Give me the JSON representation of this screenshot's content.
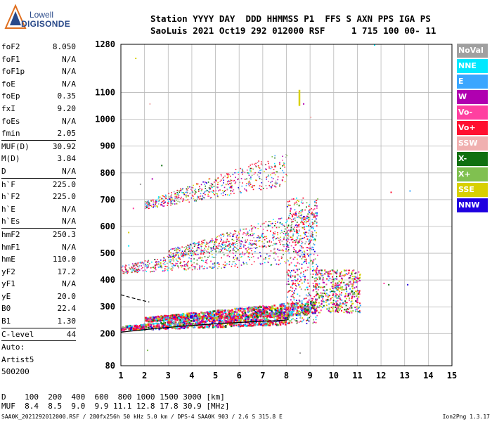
{
  "logo": {
    "line1": "Lowell",
    "line2": "DIGISONDE"
  },
  "header": {
    "line1": "Station YYYY DAY  DDD HHMMSS P1  FFS S AXN PPS IGA PS",
    "line2": "SaoLuis 2021 Oct19 292 012000 RSF     1 715 100 00- 11"
  },
  "params": {
    "group1": [
      {
        "label": "foF2",
        "value": "8.050"
      },
      {
        "label": "foF1",
        "value": "N/A"
      },
      {
        "label": "foF1p",
        "value": "N/A"
      },
      {
        "label": "foE",
        "value": "N/A"
      },
      {
        "label": "foEp",
        "value": "0.35"
      },
      {
        "label": "fxI",
        "value": "9.20"
      },
      {
        "label": "foEs",
        "value": "N/A"
      },
      {
        "label": "fmin",
        "value": "2.05"
      }
    ],
    "group2": [
      {
        "label": "MUF(D)",
        "value": "30.92"
      },
      {
        "label": "M(D)",
        "value": "3.84"
      },
      {
        "label": "D",
        "value": "N/A"
      }
    ],
    "group3": [
      {
        "label": "h`F",
        "value": "225.0"
      },
      {
        "label": "h`F2",
        "value": "225.0"
      },
      {
        "label": "h`E",
        "value": "N/A"
      },
      {
        "label": "h`Es",
        "value": "N/A"
      }
    ],
    "group4": [
      {
        "label": "hmF2",
        "value": "250.3"
      },
      {
        "label": "hmF1",
        "value": "N/A"
      },
      {
        "label": "hmE",
        "value": "110.0"
      },
      {
        "label": "yF2",
        "value": "17.2"
      },
      {
        "label": "yF1",
        "value": "N/A"
      },
      {
        "label": "yE",
        "value": "20.0"
      },
      {
        "label": "B0",
        "value": "22.4"
      },
      {
        "label": "B1",
        "value": "1.30"
      }
    ],
    "group5": [
      {
        "label": "C-level",
        "value": "44"
      }
    ],
    "auto": [
      "Auto:",
      "Artist5",
      "500200"
    ]
  },
  "legend": [
    {
      "label": "NoVal",
      "color": "#a0a0a0"
    },
    {
      "label": "NNE",
      "color": "#00e8ff"
    },
    {
      "label": "E",
      "color": "#3aa6ff"
    },
    {
      "label": "W",
      "color": "#b000b0"
    },
    {
      "label": "Vo-",
      "color": "#ff40a0"
    },
    {
      "label": "Vo+",
      "color": "#ff1030"
    },
    {
      "label": "SSW",
      "color": "#f0b0b0"
    },
    {
      "label": "X-",
      "color": "#107010"
    },
    {
      "label": "X+",
      "color": "#80c050"
    },
    {
      "label": "SSE",
      "color": "#d8d000"
    },
    {
      "label": "NNW",
      "color": "#2000e0"
    }
  ],
  "chart_data": {
    "type": "scatter",
    "x_ticks": [
      1,
      2,
      3,
      4,
      5,
      6,
      7,
      8,
      9,
      10,
      11,
      12,
      13,
      14,
      15
    ],
    "y_ticks": [
      80,
      200,
      300,
      400,
      500,
      600,
      700,
      800,
      900,
      1000,
      1100,
      1280
    ],
    "xlim": [
      1,
      15
    ],
    "ylim": [
      80,
      1280
    ],
    "grid": true,
    "traces": [
      {
        "name": "F2-O",
        "x_start": 1.0,
        "x_end": 8.1,
        "h_start": 222,
        "h_end": 262
      },
      {
        "name": "F2-X",
        "x_start": 2.0,
        "x_end": 9.2,
        "h_start": 255,
        "h_end": 300
      },
      {
        "name": "2F-O",
        "x_start": 1.0,
        "x_end": 8.1,
        "h_start": 440,
        "h_end": 525
      },
      {
        "name": "2F-X",
        "x_start": 3.0,
        "x_end": 9.2,
        "h_start": 500,
        "h_end": 610
      },
      {
        "name": "3F",
        "x_start": 2.0,
        "x_end": 8.0,
        "h_start": 680,
        "h_end": 820
      }
    ]
  },
  "bottom": {
    "d_row": "D    100  200  400  600  800 1000 1500 3000 [km]",
    "muf_row": "MUF  8.4  8.5  9.0  9.9 11.1 12.8 17.8 30.9 [MHz]"
  },
  "footer": {
    "left": "SAA0K_2021292012000.RSF / 280fx256h 50 kHz 5.0 km / DPS-4 SAA0K 903 / 2.6 S 315.8 E",
    "right": "Ion2Png 1.3.17"
  }
}
